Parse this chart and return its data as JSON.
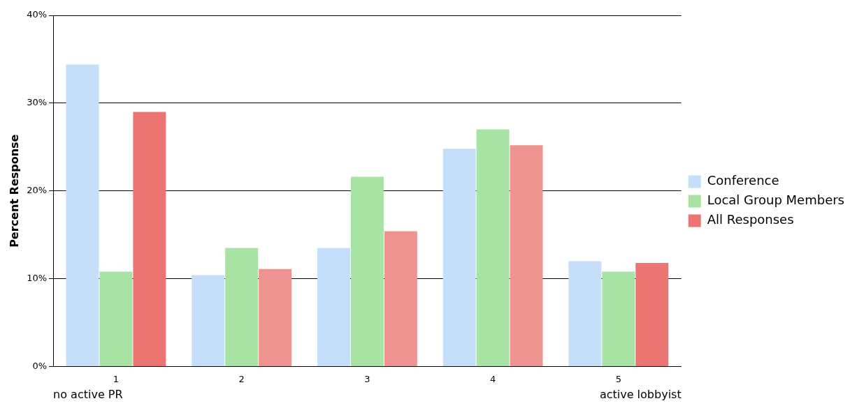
{
  "chart_data": {
    "type": "bar",
    "ylabel": "Percent Response",
    "categories": [
      "1",
      "2",
      "3",
      "4",
      "5"
    ],
    "series": [
      {
        "name": "Conference",
        "color": "#c5dffb",
        "values": [
          34.4,
          10.4,
          13.5,
          24.8,
          12.0
        ]
      },
      {
        "name": "Local Group Members",
        "color": "#a8e2a4",
        "values": [
          10.8,
          13.5,
          21.6,
          27.0,
          10.8
        ]
      },
      {
        "name": "All Responses",
        "color": "#ec7574",
        "colors": [
          "#ec7574",
          "#ee9390",
          "#ee9390",
          "#ee9390",
          "#ec7574"
        ],
        "values": [
          29.0,
          11.1,
          15.4,
          25.2,
          11.8
        ]
      }
    ],
    "ylim": [
      0,
      40
    ],
    "yticks": [
      {
        "value": 0,
        "label": "0%"
      },
      {
        "value": 10,
        "label": "10%"
      },
      {
        "value": 20,
        "label": "20%"
      },
      {
        "value": 30,
        "label": "30%"
      },
      {
        "value": 40,
        "label": "40%"
      }
    ],
    "grid": "y",
    "legend": "right",
    "annotations": [
      "no active PR",
      "active lobbyist"
    ]
  }
}
